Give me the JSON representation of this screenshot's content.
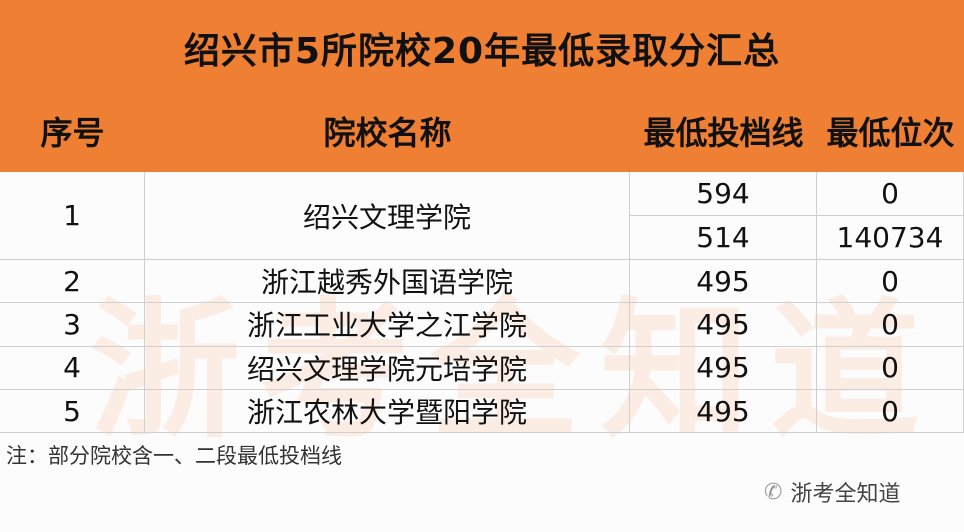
{
  "title": "绍兴市5所院校20年最低录取分汇总",
  "headers": [
    "序号",
    "院校名称",
    "最低投档线",
    "最低位次"
  ],
  "rows": [
    {
      "no": "1",
      "name": "绍兴文理学院",
      "scores": [
        "594",
        "514"
      ],
      "ranks": [
        "0",
        "140734"
      ]
    },
    {
      "no": "2",
      "name": "浙江越秀外国语学院",
      "scores": [
        "495"
      ],
      "ranks": [
        "0"
      ]
    },
    {
      "no": "3",
      "name": "浙江工业大学之江学院",
      "scores": [
        "495"
      ],
      "ranks": [
        "0"
      ]
    },
    {
      "no": "4",
      "name": "绍兴文理学院元培学院",
      "scores": [
        "495"
      ],
      "ranks": [
        "0"
      ]
    },
    {
      "no": "5",
      "name": "浙江农林大学暨阳学院",
      "scores": [
        "495"
      ],
      "ranks": [
        "0"
      ]
    }
  ],
  "note": "注：部分院校含一、二段最低投档线",
  "watermark": {
    "text": "浙考全知道",
    "icon": "wechat-icon",
    "bg_text": "浙考全知道"
  },
  "colors": {
    "header": "#ee7f33"
  }
}
